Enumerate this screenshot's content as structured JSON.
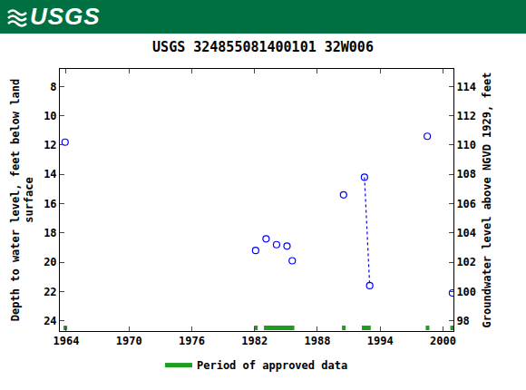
{
  "header": {
    "logo": "USGS"
  },
  "chart_data": {
    "type": "scatter",
    "title": "USGS 324855081400101 32W006",
    "y_label": [
      "Depth to water level, feet below land",
      "surface"
    ],
    "y2_label": "Groundwater level above NGVD 1929, feet",
    "xlim": [
      1963.4,
      2001.0
    ],
    "xticks": [
      1964,
      1970,
      1976,
      1982,
      1988,
      1994,
      2000
    ],
    "ylim": [
      24.7,
      6.8
    ],
    "yticks": [
      8,
      10,
      12,
      14,
      16,
      18,
      20,
      22,
      24
    ],
    "y2lim": [
      97.3,
      115.2
    ],
    "y2ticks": [
      98,
      100,
      102,
      104,
      106,
      108,
      110,
      112,
      114
    ],
    "grid": false,
    "legend": "bottom",
    "series": [
      {
        "marker": "circle-open",
        "color": "#0000ff",
        "x": [
          1963.9,
          1982.1,
          1983.1,
          1984.1,
          1985.1,
          1985.6,
          1990.5,
          1998.5,
          2000.9
        ],
        "values": [
          11.8,
          19.2,
          18.4,
          18.8,
          18.9,
          19.9,
          15.4,
          11.4,
          22.1
        ]
      },
      {
        "marker": "circle-open",
        "line_style": "dotted",
        "color": "#0000ff",
        "x": [
          1992.5,
          1993.0
        ],
        "values": [
          14.2,
          21.6
        ]
      }
    ],
    "approved_periods": {
      "name": "Period of approved data",
      "color": "#1e9e1e",
      "ranges": [
        [
          1963.75,
          1964.1
        ],
        [
          1981.95,
          1982.3
        ],
        [
          1982.9,
          1985.8
        ],
        [
          1990.35,
          1990.7
        ],
        [
          1992.25,
          1993.1
        ],
        [
          1998.35,
          1998.7
        ],
        [
          2000.7,
          2001.0
        ]
      ]
    }
  }
}
